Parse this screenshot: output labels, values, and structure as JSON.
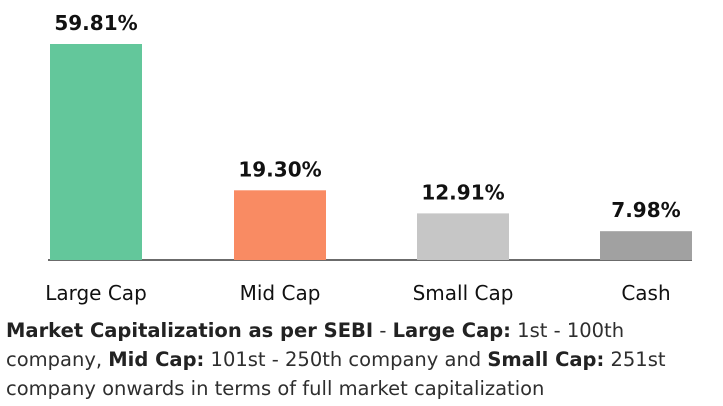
{
  "chart_data": {
    "type": "bar",
    "categories": [
      "Large Cap",
      "Mid Cap",
      "Small Cap",
      "Cash"
    ],
    "values": [
      59.81,
      19.3,
      12.91,
      7.98
    ],
    "value_labels": [
      "59.81%",
      "19.30%",
      "12.91%",
      "7.98%"
    ],
    "colors": [
      "#63c79b",
      "#f98b63",
      "#c6c6c6",
      "#a1a1a1"
    ],
    "ylim": [
      0,
      59.81
    ],
    "grid": false,
    "legend": "none"
  },
  "note": {
    "segments": [
      {
        "text": "Market Capitalization as per SEBI",
        "bold": true
      },
      {
        "text": " - ",
        "bold": false
      },
      {
        "text": "Large Cap:",
        "bold": true
      },
      {
        "text": " 1st - 100th company, ",
        "bold": false
      },
      {
        "text": "Mid Cap:",
        "bold": true
      },
      {
        "text": " 101st - 250th company and ",
        "bold": false
      },
      {
        "text": "Small Cap:",
        "bold": true
      },
      {
        "text": " 251st company onwards in terms of full market capitalization",
        "bold": false
      }
    ]
  }
}
